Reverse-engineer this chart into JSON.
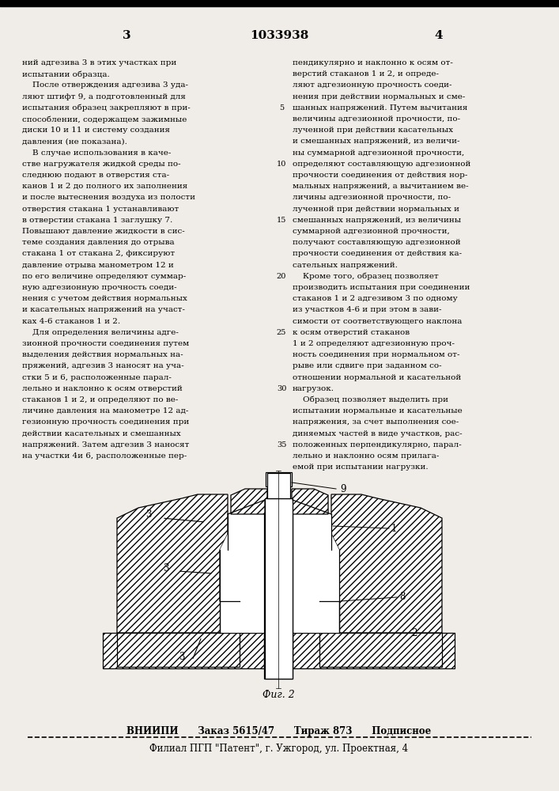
{
  "bg_color": "#f0ede8",
  "page_number_left": "3",
  "page_number_center": "1033938",
  "page_number_right": "4",
  "col1_text": [
    "ний адгезива 3 в этих участках при",
    "испытании образца.",
    "    После отверждения адгезива 3 уда-",
    "ляют штифт 9, а подготовленный для",
    "испытания образец закрепляют в при-",
    "способлении, содержащем зажимные",
    "диски 10 и 11 и систему создания",
    "давления (не показана).",
    "    В случае использования в каче-",
    "стве нагружателя жидкой среды по-",
    "следнюю подают в отверстия ста-",
    "канов 1 и 2 до полного их заполнения",
    "и после вытеснения воздуха из полости",
    "отверстия стакана 1 устанавливают",
    "в отверстии стакана 1 заглушку 7.",
    "Повышают давление жидкости в сис-",
    "теме создания давления до отрыва",
    "стакана 1 от стакана 2, фиксируют",
    "давление отрыва манометром 12 и",
    "по его величине определяют суммар-",
    "ную адгезионную прочность соеди-",
    "нения с учетом действия нормальных",
    "и касательных напряжений на участ-",
    "ках 4-6 стаканов 1 и 2.",
    "    Для определения величины адге-",
    "зионной прочности соединения путем",
    "выделения действия нормальных на-",
    "пряжений, адгезив 3 наносят на уча-",
    "стки 5 и 6, расположенные парал-",
    "лельно и наклонно к осям отверстий",
    "стаканов 1 и 2, и определяют по ве-",
    "личине давления на манометре 12 ад-",
    "гезионную прочность соединения при",
    "действии касательных и смешанных",
    "напряжений. Затем адгезив 3 наносят",
    "на участки 4и 6, расположенные пер-"
  ],
  "col2_text": [
    "пендикулярно и наклонно к осям от-",
    "верстий стаканов 1 и 2, и опреде-",
    "ляют адгезионную прочность соеди-",
    "нения при действии нормальных и сме-",
    "шанных напряжений. Путем вычитания",
    "величины адгезионной прочности, по-",
    "лученной при действии касательных",
    "и смешанных напряжений, из величи-",
    "ны суммарной адгезионной прочности,",
    "определяют составляющую адгезионной",
    "прочности соединения от действия нор-",
    "мальных напряжений, а вычитанием ве-",
    "личины адгезионной прочности, по-",
    "лученной при действии нормальных и",
    "смешанных напряжений, из величины",
    "суммарной адгезионной прочности,",
    "получают составляющую адгезионной",
    "прочности соединения от действия ка-",
    "сательных напряжений.",
    "    Кроме того, образец позволяет",
    "производить испытания при соединении",
    "стаканов 1 и 2 адгезивом 3 по одному",
    "из участков 4-6 и при этом в зави-",
    "симости от соответствующего наклона",
    "к осям отверстий стаканов",
    "1 и 2 определяют адгезионную проч-",
    "ность соединения при нормальном от-",
    "рыве или сдвиге при заданном со-",
    "отношении нормальной и касательной",
    "нагрузок.",
    "    Образец позволяет выделить при",
    "испытании нормальные и касательные",
    "напряжения, за счет выполнения сое-",
    "диняемых частей в виде участков, рас-",
    "положенных перпендикулярно, парал-",
    "лельно и наклонно осям прилага-",
    "емой при испытании нагрузки."
  ],
  "line_numbers": [
    "5",
    "10",
    "15",
    "20",
    "25",
    "30",
    "35"
  ],
  "footer_line1": "ВНИИПИ      Заказ 5615/47      Тираж 873      Подписное",
  "footer_line2": "Филиал ПГП \"Патент\", г. Ужгород, ул. Проектная, 4",
  "fig_label": "Фиг. 2",
  "text_font_size": 7.5,
  "footer_font_size": 8.5,
  "hatch_color": "#c8b89a",
  "line_lw": 0.9
}
